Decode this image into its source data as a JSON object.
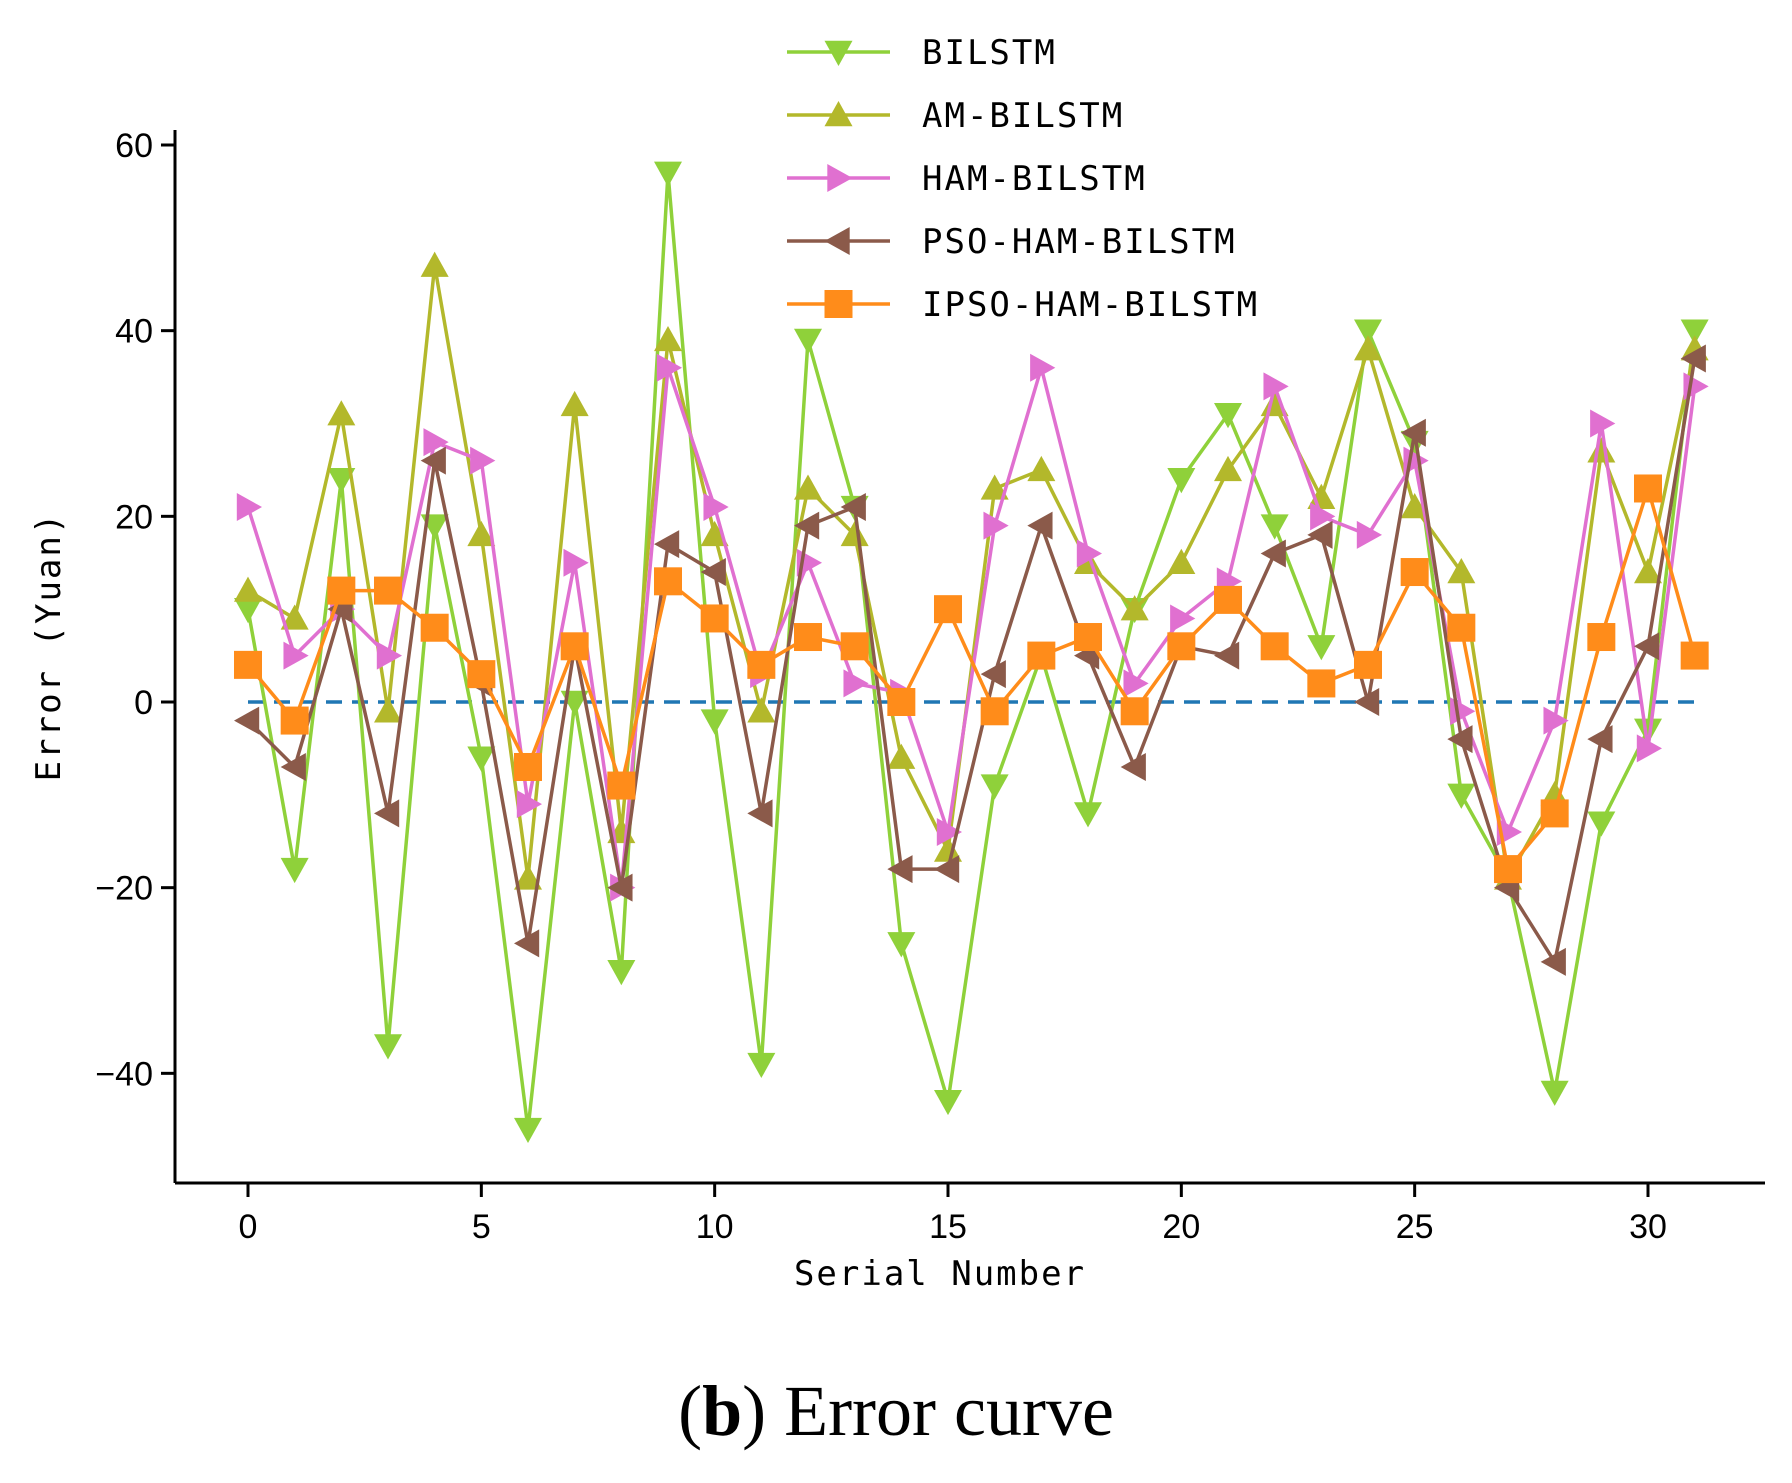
{
  "chart_data": {
    "type": "line",
    "title": "",
    "xlabel": "Serial Number",
    "ylabel": "Error (Yuan)",
    "xlim": [
      -1.5,
      32.5
    ],
    "ylim": [
      -52,
      62
    ],
    "xticks": [
      0,
      5,
      10,
      15,
      20,
      25,
      30
    ],
    "yticks": [
      -40,
      -20,
      0,
      20,
      40,
      60
    ],
    "xtick_labels": [
      "0",
      "5",
      "10",
      "15",
      "20",
      "25",
      "30"
    ],
    "ytick_labels": [
      "−40",
      "−20",
      "0",
      "20",
      "40",
      "60"
    ],
    "x": [
      0,
      1,
      2,
      3,
      4,
      5,
      6,
      7,
      8,
      9,
      10,
      11,
      12,
      13,
      14,
      15,
      16,
      17,
      18,
      19,
      20,
      21,
      22,
      23,
      24,
      25,
      26,
      27,
      28,
      29,
      30,
      31
    ],
    "reference_line": {
      "y": 0,
      "color": "#1f77b4",
      "style": "dashed"
    },
    "legend_position": "top-center",
    "series": [
      {
        "name": "BILSTM",
        "marker": "triangle-down",
        "color": "#8fd13a",
        "values": [
          10,
          -18,
          24,
          -37,
          19,
          -6,
          -46,
          0,
          -29,
          57,
          -2,
          -39,
          39,
          21,
          -26,
          -43,
          -9,
          5,
          -12,
          10,
          24,
          31,
          19,
          6,
          40,
          28,
          -10,
          -19,
          -42,
          -13,
          -3,
          40
        ]
      },
      {
        "name": "AM-BILSTM",
        "marker": "triangle-up",
        "color": "#b3b82b",
        "values": [
          12,
          9,
          31,
          -1,
          47,
          18,
          -19,
          32,
          -14,
          39,
          18,
          -1,
          23,
          18,
          -6,
          -16,
          23,
          25,
          15,
          10,
          15,
          25,
          32,
          22,
          38,
          21,
          14,
          -19,
          -10,
          27,
          14,
          38
        ]
      },
      {
        "name": "HAM-BILSTM",
        "marker": "triangle-right",
        "color": "#e070d0",
        "values": [
          21,
          5,
          10,
          5,
          28,
          26,
          -11,
          15,
          -20,
          36,
          21,
          3,
          15,
          2,
          1,
          -14,
          19,
          36,
          16,
          2,
          9,
          13,
          34,
          20,
          18,
          26,
          -1,
          -14,
          -2,
          30,
          -5,
          34
        ]
      },
      {
        "name": "PSO-HAM-BILSTM",
        "marker": "triangle-left",
        "color": "#8b5a4a",
        "values": [
          -2,
          -7,
          10,
          -12,
          26,
          2,
          -26,
          6,
          -20,
          17,
          14,
          -12,
          19,
          21,
          -18,
          -18,
          3,
          19,
          5,
          -7,
          6,
          5,
          16,
          18,
          0,
          29,
          -4,
          -20,
          -28,
          -4,
          6,
          37
        ]
      },
      {
        "name": "IPSO-HAM-BILSTM",
        "marker": "square",
        "color": "#ff8c1a",
        "values": [
          4,
          -2,
          12,
          12,
          8,
          3,
          -7,
          6,
          -9,
          13,
          9,
          4,
          7,
          6,
          0,
          10,
          -1,
          5,
          7,
          -1,
          6,
          11,
          6,
          2,
          4,
          14,
          8,
          -18,
          -12,
          7,
          23,
          5
        ]
      }
    ]
  },
  "caption": {
    "bold": "b",
    "text": " Error curve"
  }
}
